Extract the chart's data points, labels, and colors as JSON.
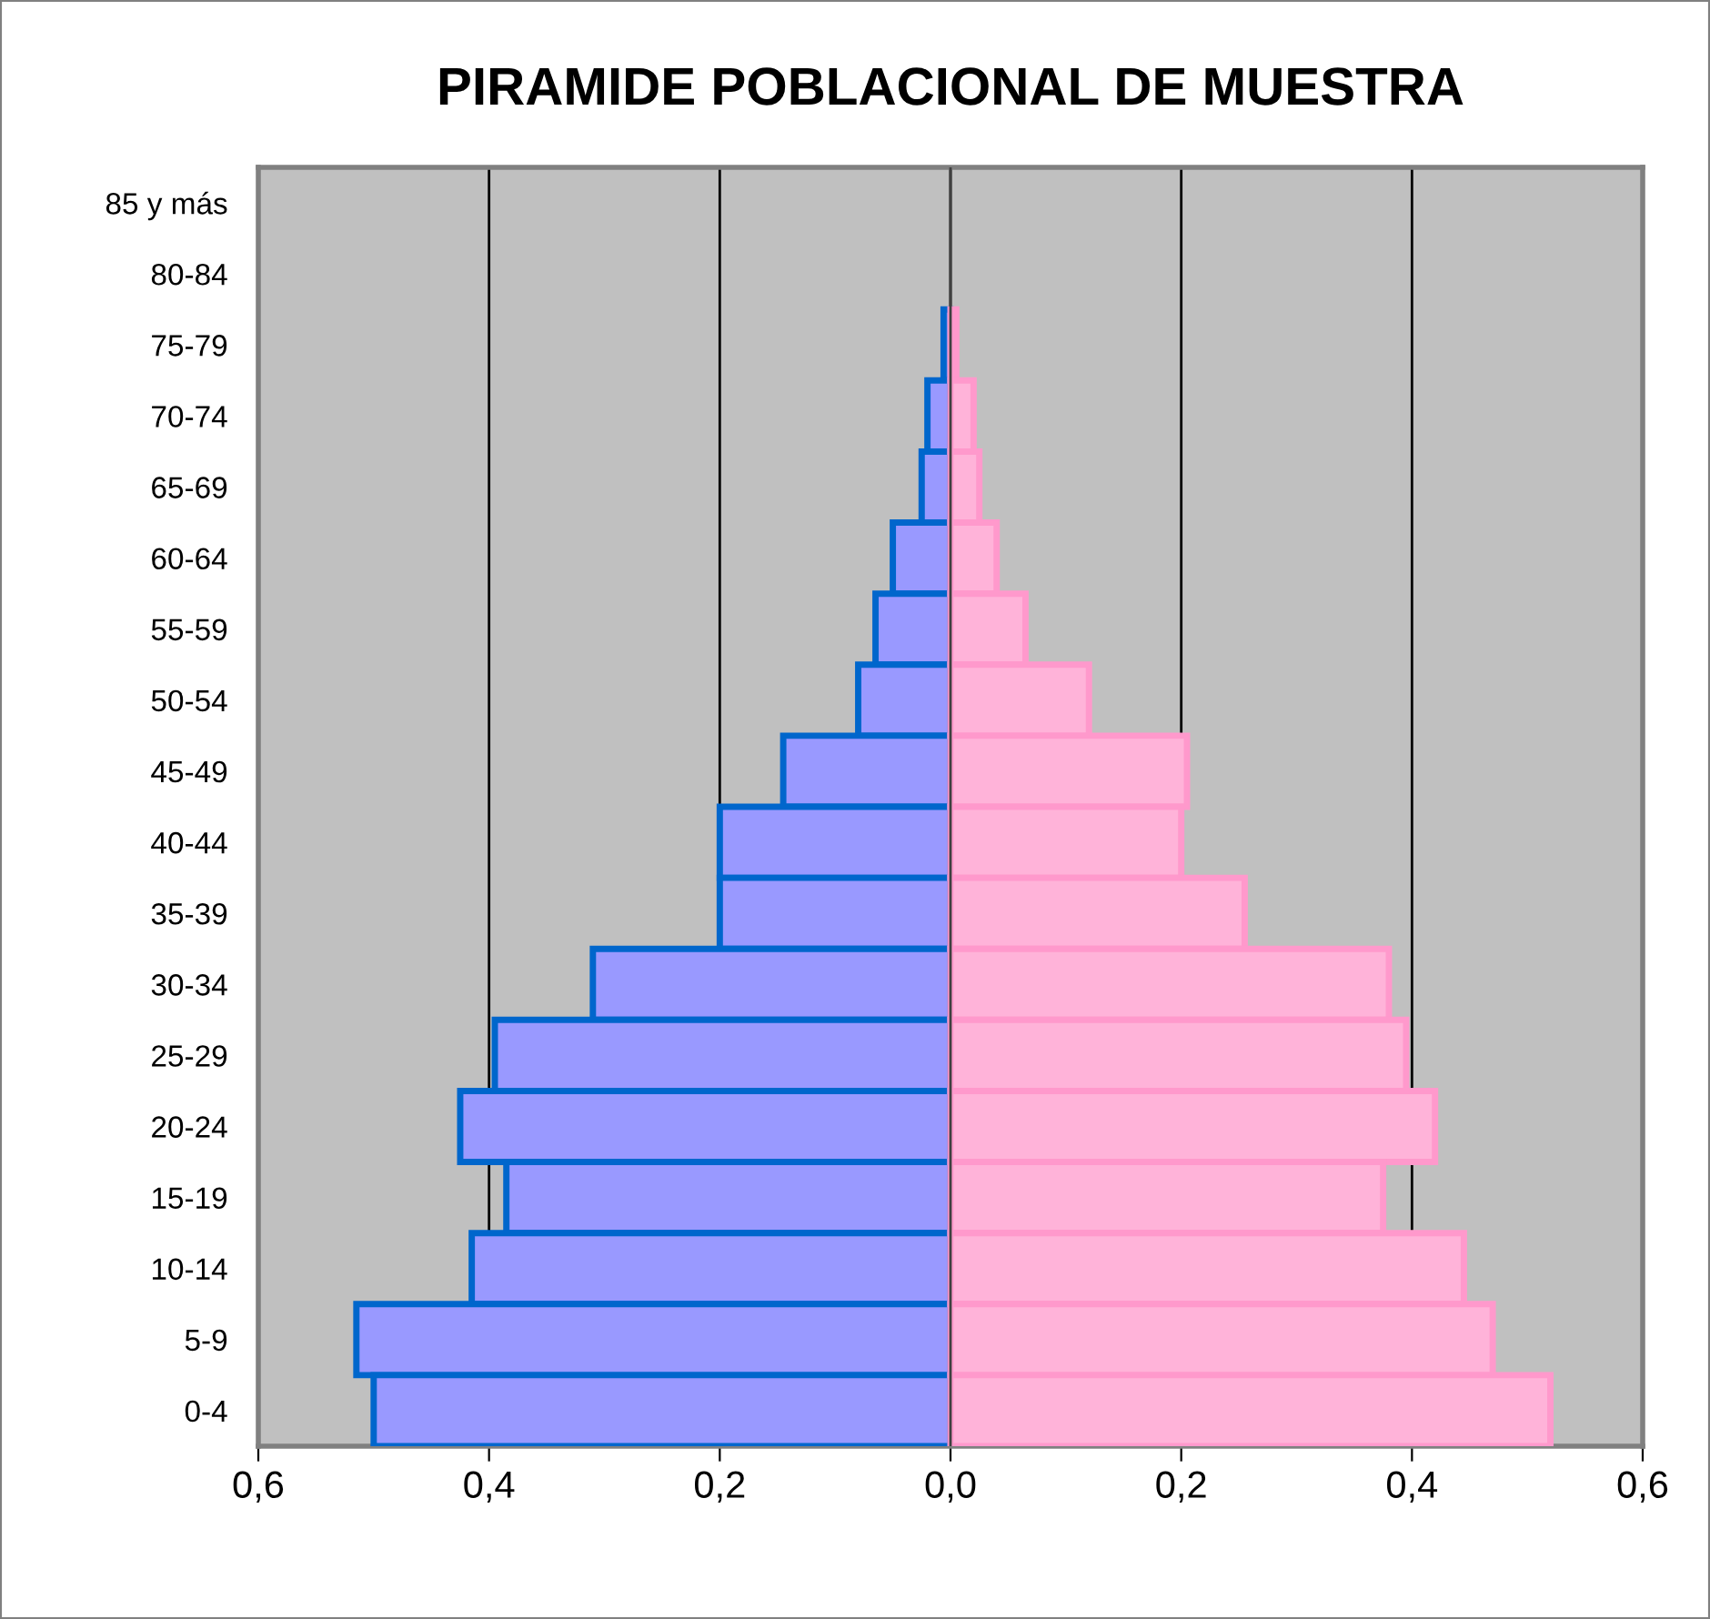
{
  "chart_data": {
    "type": "bar",
    "orientation": "horizontal",
    "title": "PIRAMIDE POBLACIONAL DE MUESTRA",
    "categories": [
      "85 y más",
      "80-84",
      "75-79",
      "70-74",
      "65-69",
      "60-64",
      "55-59",
      "50-54",
      "45-49",
      "40-44",
      "35-39",
      "30-34",
      "25-29",
      "20-24",
      "15-19",
      "10-14",
      "5-9",
      "0-4"
    ],
    "series": [
      {
        "color": "#9999ff",
        "values": [
          0,
          0,
          -0.006,
          -0.02,
          -0.025,
          -0.05,
          -0.065,
          -0.08,
          -0.145,
          -0.2,
          -0.2,
          -0.31,
          -0.395,
          -0.425,
          -0.385,
          -0.415,
          -0.515,
          -0.5
        ]
      },
      {
        "color": "#ffb3d9",
        "values": [
          0,
          0,
          0.005,
          0.02,
          0.025,
          0.04,
          0.065,
          0.12,
          0.205,
          0.2,
          0.255,
          0.38,
          0.395,
          0.42,
          0.375,
          0.445,
          0.47,
          0.52
        ]
      }
    ],
    "xlim": [
      -0.6,
      0.6
    ],
    "xticks": [
      {
        "value": -0.6,
        "label": "0,6"
      },
      {
        "value": -0.4,
        "label": "0,4"
      },
      {
        "value": -0.2,
        "label": "0,2"
      },
      {
        "value": 0,
        "label": "0,0"
      },
      {
        "value": 0.2,
        "label": "0,2"
      },
      {
        "value": 0.4,
        "label": "0,4"
      },
      {
        "value": 0.6,
        "label": "0,6"
      }
    ],
    "grid": "x",
    "legend": false,
    "stacked": true
  }
}
